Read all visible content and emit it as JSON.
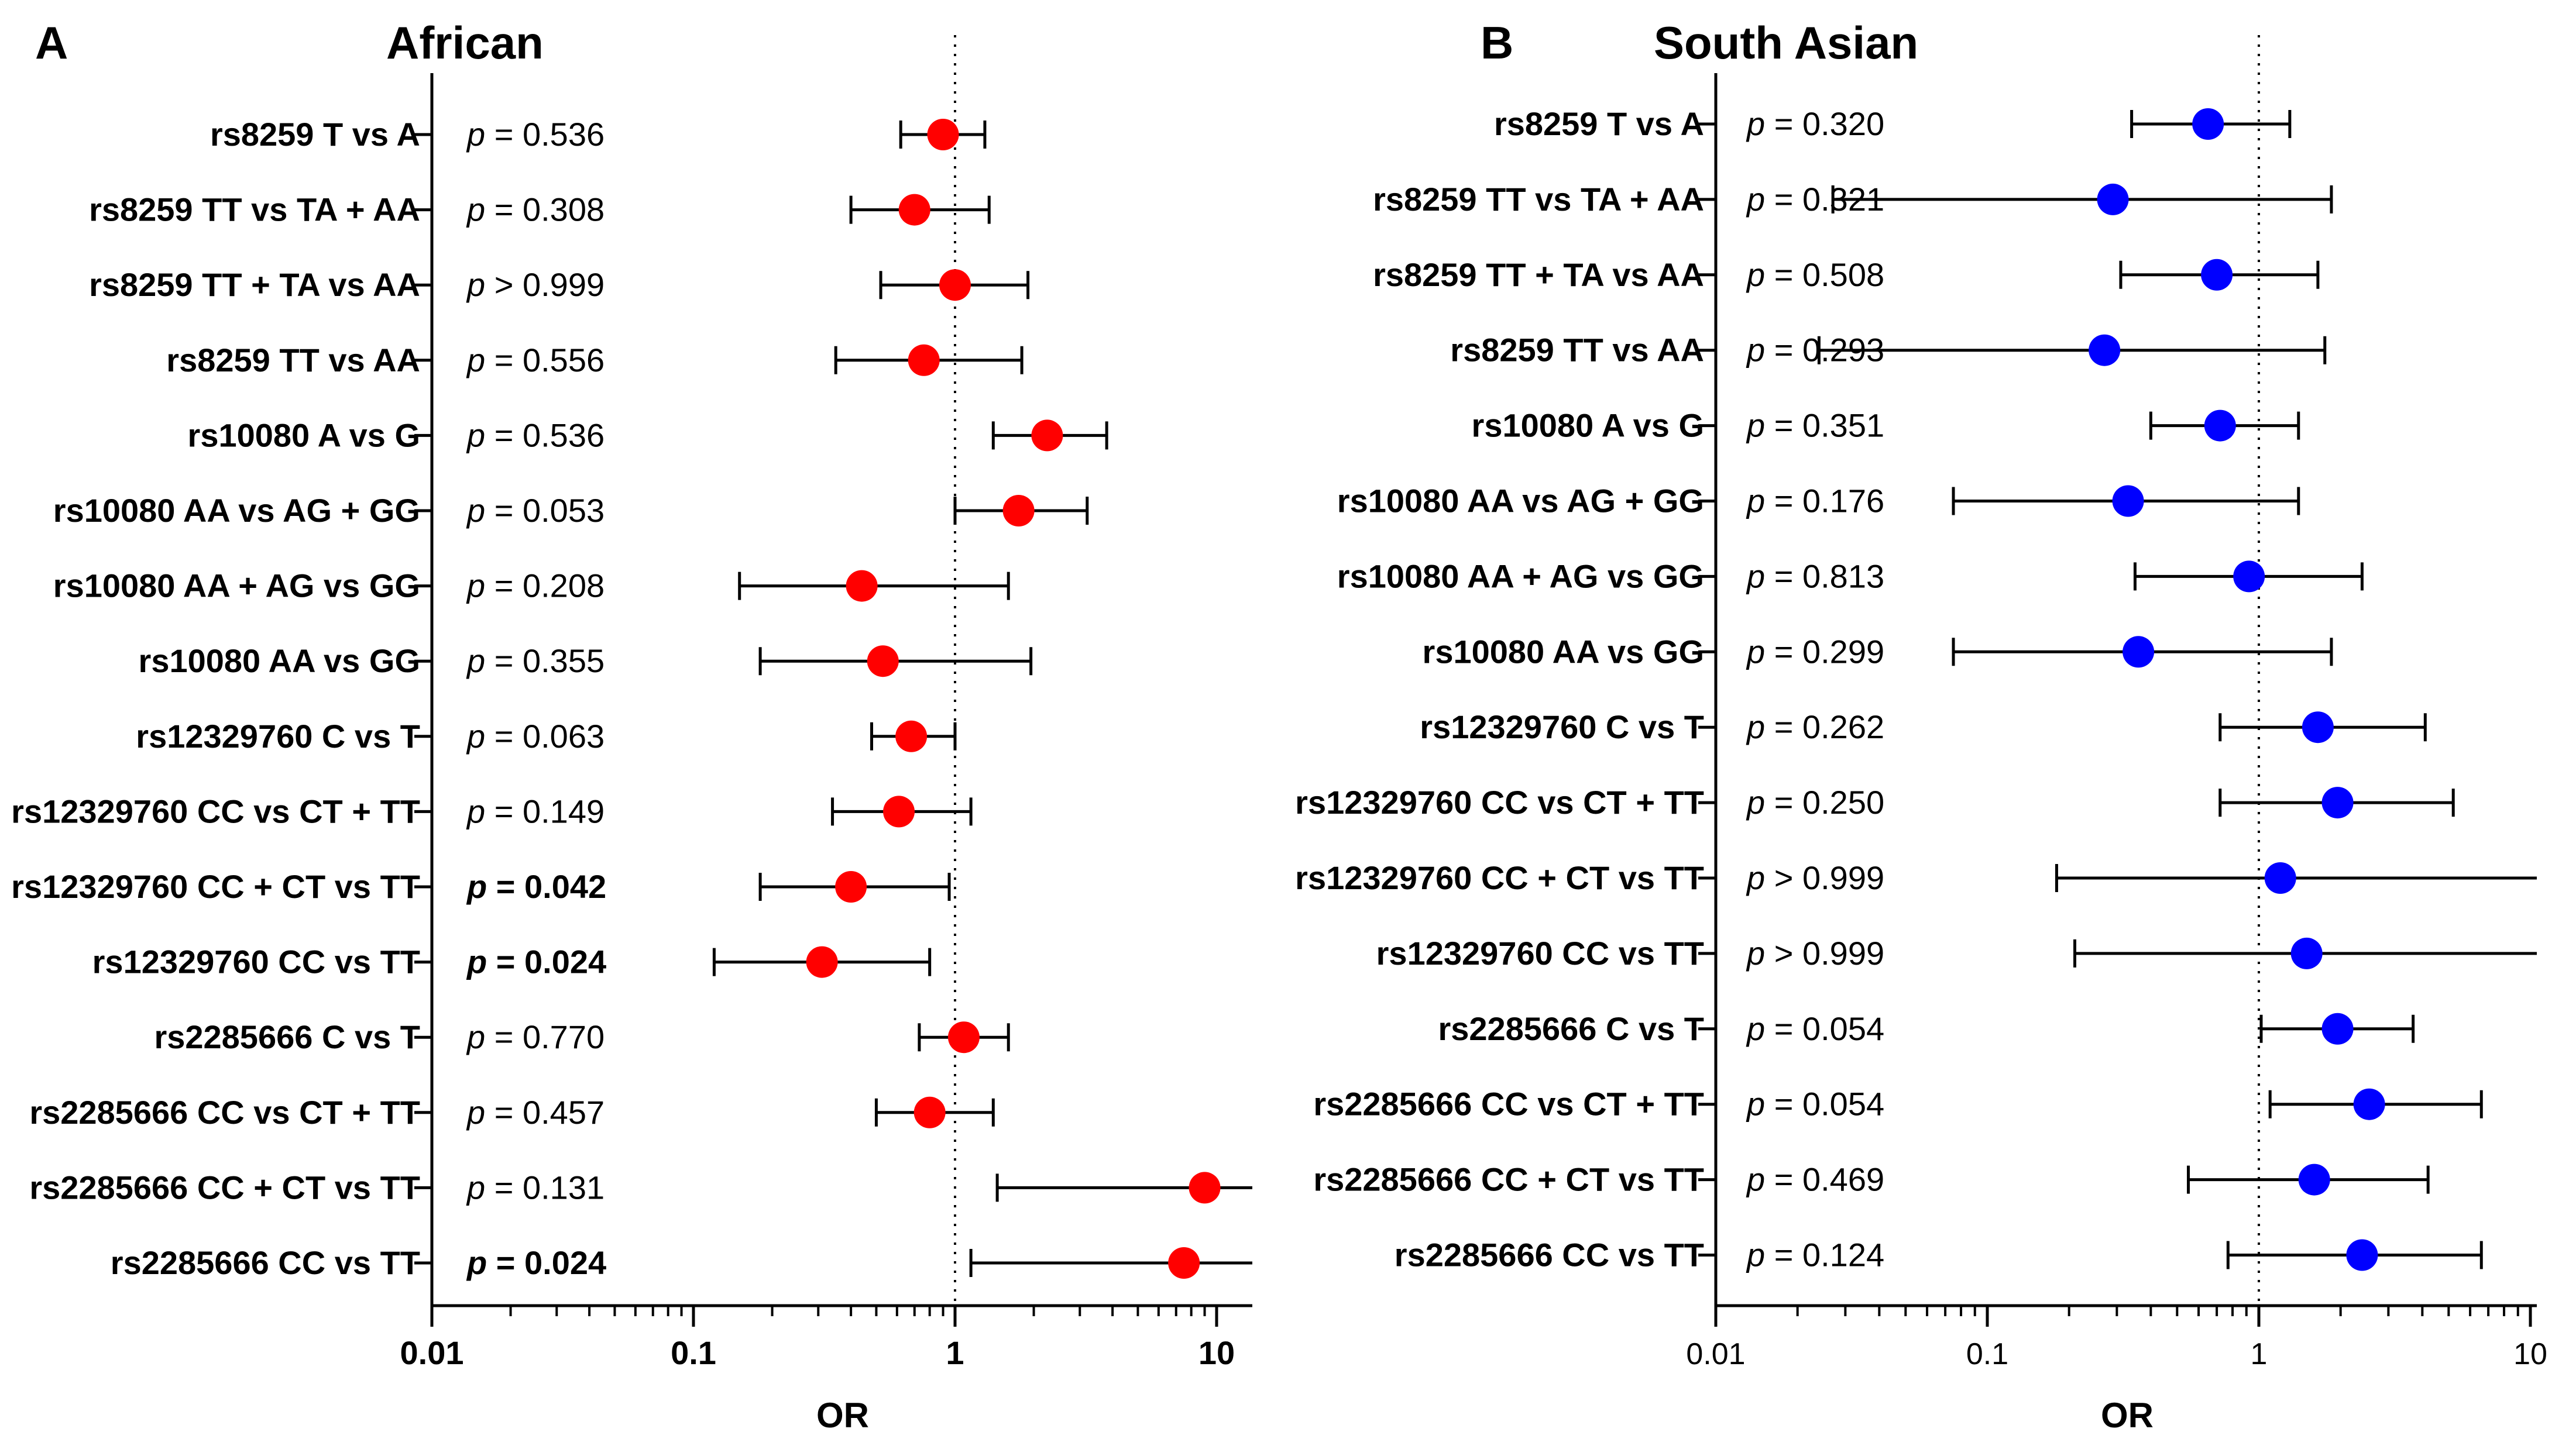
{
  "chart_data": [
    {
      "type": "scatter",
      "panel_letter": "A",
      "title": "African",
      "xlabel": "OR",
      "ylabel": "",
      "x_scale": "log",
      "xlim": [
        0.01,
        15
      ],
      "x_ticks": [
        "0.01",
        "0.1",
        "1",
        "10"
      ],
      "reference_line": 1,
      "point_color": "#ff0000",
      "rows": [
        {
          "label": "rs8259 T vs A",
          "or": 0.9,
          "ci": [
            0.62,
            1.3
          ],
          "p": "p = 0.536",
          "bold": false
        },
        {
          "label": "rs8259 TT vs TA + AA",
          "or": 0.7,
          "ci": [
            0.4,
            1.35
          ],
          "p": "p = 0.308",
          "bold": false
        },
        {
          "label": "rs8259 TT + TA vs AA",
          "or": 1.0,
          "ci": [
            0.52,
            1.9
          ],
          "p": "p > 0.999",
          "bold": false
        },
        {
          "label": "rs8259 TT vs AA",
          "or": 0.76,
          "ci": [
            0.35,
            1.8
          ],
          "p": "p = 0.556",
          "bold": false
        },
        {
          "label": "rs10080 A vs G",
          "or": 2.25,
          "ci": [
            1.4,
            3.8
          ],
          "p": "p = 0.536",
          "bold": false
        },
        {
          "label": "rs10080 AA vs AG + GG",
          "or": 1.75,
          "ci": [
            1.0,
            3.2
          ],
          "p": "p = 0.053",
          "bold": false
        },
        {
          "label": "rs10080 AA + AG vs GG",
          "or": 0.44,
          "ci": [
            0.15,
            1.6
          ],
          "p": "p = 0.208",
          "bold": false
        },
        {
          "label": "rs10080 AA vs GG",
          "or": 0.53,
          "ci": [
            0.18,
            1.95
          ],
          "p": "p = 0.355",
          "bold": false
        },
        {
          "label": "rs12329760 C vs T",
          "or": 0.68,
          "ci": [
            0.48,
            1.0
          ],
          "p": "p = 0.063",
          "bold": false
        },
        {
          "label": "rs12329760 CC vs CT + TT",
          "or": 0.61,
          "ci": [
            0.34,
            1.15
          ],
          "p": "p = 0.149",
          "bold": false
        },
        {
          "label": "rs12329760 CC + CT vs TT",
          "or": 0.4,
          "ci": [
            0.18,
            0.95
          ],
          "p": "p = 0.042",
          "bold": true
        },
        {
          "label": "rs12329760 CC vs TT",
          "or": 0.31,
          "ci": [
            0.12,
            0.8
          ],
          "p": "p = 0.024",
          "bold": true
        },
        {
          "label": "rs2285666 C vs T",
          "or": 1.08,
          "ci": [
            0.73,
            1.6
          ],
          "p": "p = 0.770",
          "bold": false
        },
        {
          "label": "rs2285666 CC vs CT + TT",
          "or": 0.8,
          "ci": [
            0.5,
            1.4
          ],
          "p": "p = 0.457",
          "bold": false
        },
        {
          "label": "rs2285666 CC + CT vs TT",
          "or": 9.0,
          "ci": [
            1.45,
            15
          ],
          "p": "p = 0.131",
          "bold": false
        },
        {
          "label": "rs2285666 CC vs TT",
          "or": 7.5,
          "ci": [
            1.15,
            15
          ],
          "p": "p = 0.024",
          "bold": true
        }
      ]
    },
    {
      "type": "scatter",
      "panel_letter": "B",
      "title": "South Asian",
      "xlabel": "OR",
      "ylabel": "",
      "x_scale": "log",
      "xlim": [
        0.01,
        11
      ],
      "x_ticks": [
        "0.01",
        "0.1",
        "1",
        "10"
      ],
      "reference_line": 1,
      "point_color": "#0000ff",
      "rows": [
        {
          "label": "rs8259 T vs A",
          "or": 0.65,
          "ci": [
            0.34,
            1.3
          ],
          "p": "p = 0.320",
          "bold": false
        },
        {
          "label": "rs8259 TT vs TA + AA",
          "or": 0.29,
          "ci": [
            0.027,
            1.85
          ],
          "p": "p = 0.321",
          "bold": false
        },
        {
          "label": "rs8259 TT + TA vs AA",
          "or": 0.7,
          "ci": [
            0.31,
            1.65
          ],
          "p": "p = 0.508",
          "bold": false
        },
        {
          "label": "rs8259 TT vs AA",
          "or": 0.27,
          "ci": [
            0.024,
            1.75
          ],
          "p": "p = 0.293",
          "bold": false
        },
        {
          "label": "rs10080 A vs G",
          "or": 0.72,
          "ci": [
            0.4,
            1.4
          ],
          "p": "p = 0.351",
          "bold": false
        },
        {
          "label": "rs10080 AA vs AG + GG",
          "or": 0.33,
          "ci": [
            0.075,
            1.4
          ],
          "p": "p = 0.176",
          "bold": false
        },
        {
          "label": "rs10080 AA + AG vs GG",
          "or": 0.92,
          "ci": [
            0.35,
            2.4
          ],
          "p": "p = 0.813",
          "bold": false
        },
        {
          "label": "rs10080 AA vs GG",
          "or": 0.36,
          "ci": [
            0.075,
            1.85
          ],
          "p": "p = 0.299",
          "bold": false
        },
        {
          "label": "rs12329760 C vs T",
          "or": 1.65,
          "ci": [
            0.72,
            4.1
          ],
          "p": "p = 0.262",
          "bold": false
        },
        {
          "label": "rs12329760 CC vs CT + TT",
          "or": 1.95,
          "ci": [
            0.72,
            5.2
          ],
          "p": "p = 0.250",
          "bold": false
        },
        {
          "label": "rs12329760 CC + CT vs TT",
          "or": 1.2,
          "ci": [
            0.18,
            11
          ],
          "p": "p > 0.999",
          "bold": false
        },
        {
          "label": "rs12329760 CC vs TT",
          "or": 1.5,
          "ci": [
            0.21,
            11
          ],
          "p": "p > 0.999",
          "bold": false
        },
        {
          "label": "rs2285666 C vs T",
          "or": 1.95,
          "ci": [
            1.02,
            3.7
          ],
          "p": "p = 0.054",
          "bold": false
        },
        {
          "label": "rs2285666 CC vs CT + TT",
          "or": 2.55,
          "ci": [
            1.1,
            6.6
          ],
          "p": "p = 0.054",
          "bold": false
        },
        {
          "label": "rs2285666 CC + CT vs TT",
          "or": 1.6,
          "ci": [
            0.55,
            4.2
          ],
          "p": "p = 0.469",
          "bold": false
        },
        {
          "label": "rs2285666 CC vs TT",
          "or": 2.4,
          "ci": [
            0.77,
            6.6
          ],
          "p": "p = 0.124",
          "bold": false
        }
      ]
    }
  ]
}
